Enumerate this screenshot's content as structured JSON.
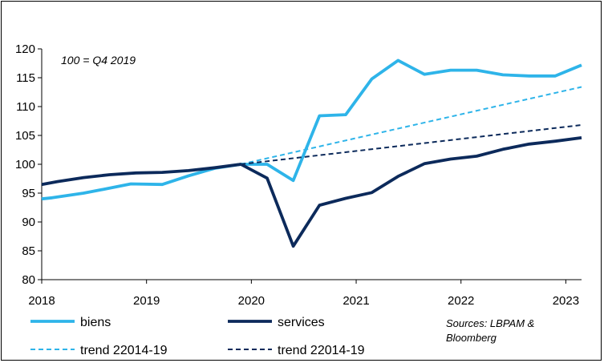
{
  "chart_data": {
    "type": "line",
    "annotation": "100 = Q4 2019",
    "source_lines": [
      "Sources: LBPAM &",
      "Bloomberg"
    ],
    "ylim": [
      80,
      120
    ],
    "y_ticks": [
      80,
      85,
      90,
      95,
      100,
      105,
      110,
      115,
      120
    ],
    "x_range": [
      2018.0,
      2023.15
    ],
    "x_ticks": [
      2018,
      2019,
      2020,
      2021,
      2022,
      2023
    ],
    "grid": false,
    "legend_position": "bottom",
    "colors": {
      "light": "#2eb4e9",
      "dark": "#0c2a5b"
    },
    "series": [
      {
        "name": "biens",
        "style": "solid",
        "color": "#2eb4e9",
        "x": [
          2018.0,
          2018.1,
          2018.4,
          2018.6,
          2018.85,
          2019.15,
          2019.4,
          2019.65,
          2019.9,
          2020.15,
          2020.4,
          2020.65,
          2020.9,
          2021.15,
          2021.4,
          2021.65,
          2021.9,
          2022.15,
          2022.4,
          2022.65,
          2022.9,
          2023.15
        ],
        "values": [
          94.0,
          94.2,
          95.0,
          95.7,
          96.6,
          96.5,
          98.0,
          99.3,
          100.0,
          100.0,
          97.2,
          108.4,
          108.6,
          114.8,
          118.0,
          115.6,
          116.3,
          116.3,
          115.5,
          115.3,
          115.3,
          117.2
        ]
      },
      {
        "name": "services",
        "style": "solid",
        "color": "#0c2a5b",
        "x": [
          2018.0,
          2018.15,
          2018.4,
          2018.65,
          2018.9,
          2019.15,
          2019.4,
          2019.65,
          2019.9,
          2020.15,
          2020.4,
          2020.65,
          2020.9,
          2021.15,
          2021.4,
          2021.65,
          2021.9,
          2022.15,
          2022.4,
          2022.65,
          2022.9,
          2023.15
        ],
        "values": [
          96.5,
          97.0,
          97.7,
          98.2,
          98.5,
          98.6,
          98.9,
          99.4,
          100.0,
          97.6,
          85.8,
          92.9,
          94.1,
          95.1,
          97.9,
          100.1,
          100.9,
          101.4,
          102.6,
          103.5,
          104.0,
          104.6
        ]
      },
      {
        "name": "trend 22014-19",
        "style": "dashed",
        "color": "#2eb4e9",
        "x": [
          2019.9,
          2023.15
        ],
        "values": [
          100.0,
          113.4
        ]
      },
      {
        "name": "trend 22014-19",
        "style": "dashed",
        "color": "#0c2a5b",
        "x": [
          2019.9,
          2023.15
        ],
        "values": [
          100.0,
          106.8
        ]
      }
    ]
  }
}
